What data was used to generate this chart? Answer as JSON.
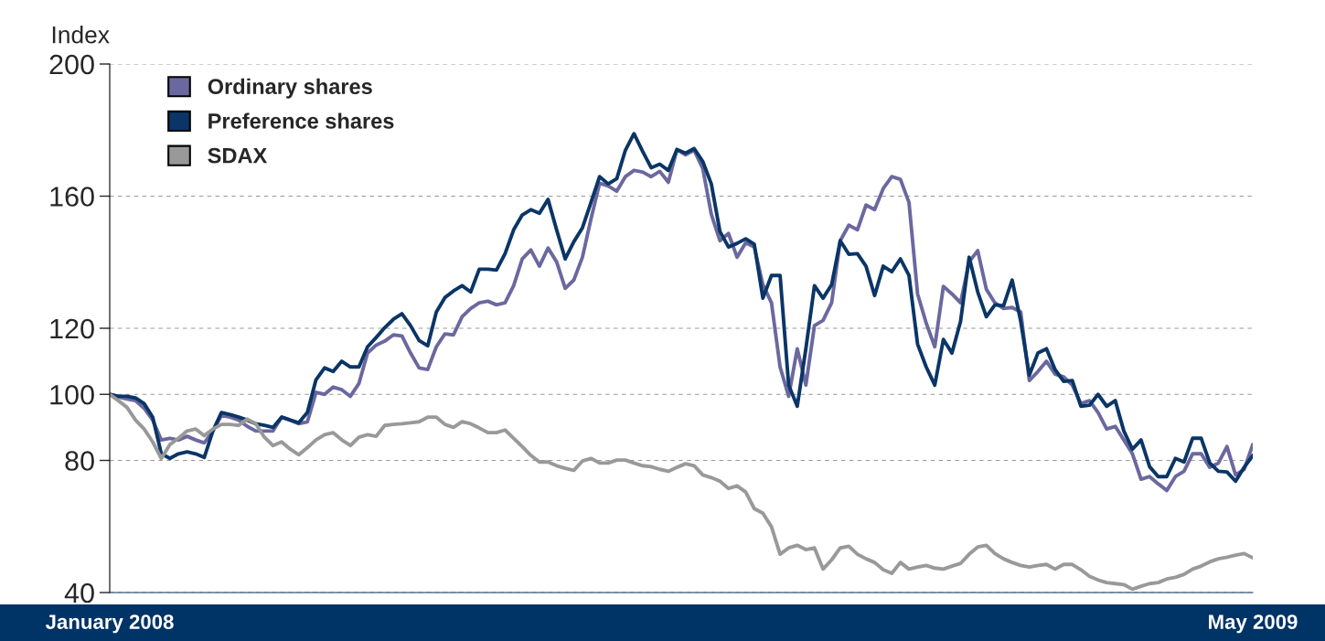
{
  "chart_data": {
    "type": "line",
    "ylabel": "Index",
    "categories": [
      "January 2008",
      null,
      null,
      null,
      null,
      null,
      null,
      null,
      null,
      null,
      null,
      null,
      null,
      null,
      null,
      null,
      null,
      null,
      null,
      null,
      null,
      null,
      null,
      null,
      null,
      null,
      null,
      null,
      null,
      null,
      null,
      null,
      null,
      null,
      null,
      null,
      null,
      null,
      null,
      null,
      null,
      null,
      null,
      null,
      null,
      null,
      null,
      null,
      null,
      null,
      null,
      null,
      null,
      null,
      null,
      null,
      null,
      null,
      null,
      null,
      null,
      null,
      null,
      null,
      null,
      null,
      null,
      null,
      null,
      null,
      null,
      null,
      null,
      null,
      null,
      null,
      null,
      null,
      null,
      null,
      null,
      null,
      null,
      null,
      null,
      null,
      null,
      null,
      null,
      null,
      null,
      null,
      null,
      null,
      null,
      null,
      null,
      null,
      null,
      null,
      null,
      null,
      null,
      null,
      null,
      null,
      null,
      null,
      null,
      null,
      null,
      null,
      null,
      null,
      null,
      null,
      null,
      null,
      null,
      null,
      null,
      null,
      null,
      null,
      null,
      null,
      null,
      null,
      null,
      null,
      null,
      null,
      null,
      "May 2009"
    ],
    "series": [
      {
        "name": "Ordinary shares",
        "color": "#6b689f",
        "values": [
          100,
          99.2,
          98.6,
          98.1,
          95.8,
          92.2,
          86.2,
          86.7,
          86.2,
          87.3,
          86.2,
          85.3,
          88.9,
          93.6,
          93.1,
          92.2,
          90.3,
          88.9,
          88.9,
          88.9,
          93.1,
          92.2,
          91.1,
          91.7,
          100.6,
          100,
          102.2,
          101.4,
          99.4,
          103.3,
          112.5,
          114.9,
          116.1,
          118.0,
          117.7,
          112.5,
          108.0,
          107.5,
          114.4,
          118.3,
          118.0,
          123.5,
          126.0,
          127.7,
          128.2,
          127.1,
          127.7,
          132.9,
          141.0,
          143.7,
          138.8,
          144.3,
          140.1,
          132.1,
          134.6,
          141.5,
          153.1,
          163.9,
          163.1,
          161.5,
          165.9,
          167.8,
          167.3,
          165.9,
          167.5,
          164.2,
          174.1,
          172.5,
          173.9,
          168.4,
          154.5,
          146.5,
          148.7,
          141.5,
          145.9,
          144.6,
          133.2,
          127.7,
          108.3,
          99.4,
          113.8,
          102.8,
          120.8,
          122.4,
          127.7,
          146.5,
          151.2,
          149.8,
          157.3,
          155.9,
          162.3,
          165.9,
          165.1,
          158.1,
          130.4,
          121.6,
          114.4,
          132.7,
          130.4,
          127.7,
          140.1,
          143.5,
          131.8,
          127.7,
          126.0,
          126.3,
          124.9,
          104.2,
          106.9,
          110.0,
          106.1,
          105.3,
          102.8,
          97.2,
          98.1,
          94.5,
          89.5,
          90.3,
          86.2,
          82.0,
          74.3,
          75.1,
          72.9,
          70.9,
          75.1,
          76.7,
          82.0,
          82.0,
          77.9,
          79.2,
          84.2,
          75.6,
          77.3,
          84.8
        ]
      },
      {
        "name": "Preference shares",
        "color": "#0a3566",
        "values": [
          100,
          99.4,
          99.4,
          98.9,
          97.2,
          93.1,
          82.0,
          80.6,
          82.0,
          82.6,
          82.0,
          80.9,
          88.9,
          94.5,
          93.9,
          93.1,
          92.2,
          91.1,
          90.6,
          90.0,
          93.1,
          92.2,
          91.4,
          94.5,
          104.4,
          108.0,
          106.9,
          110.0,
          108.3,
          108.3,
          114.4,
          117.2,
          120.2,
          122.7,
          124.4,
          120.8,
          116.3,
          114.7,
          124.9,
          129.3,
          131.3,
          132.9,
          131.0,
          137.9,
          137.9,
          137.6,
          142.6,
          149.8,
          154.3,
          155.9,
          154.8,
          159.0,
          149.8,
          141.0,
          146.2,
          150.4,
          158.1,
          165.9,
          163.7,
          165.3,
          173.9,
          178.9,
          173.6,
          168.6,
          169.7,
          167.8,
          174.1,
          173.0,
          174.4,
          170.5,
          163.7,
          149.3,
          144.6,
          145.7,
          147.1,
          145.4,
          129.1,
          136.0,
          136.0,
          102.8,
          96.4,
          113.8,
          132.9,
          129.1,
          133.2,
          146.5,
          142.4,
          142.6,
          138.8,
          129.9,
          138.8,
          137.1,
          141.0,
          136.0,
          115.2,
          108.3,
          102.8,
          116.6,
          112.5,
          122.1,
          141.5,
          131.0,
          123.5,
          127.1,
          126.8,
          134.6,
          122.1,
          105.8,
          112.5,
          113.8,
          107.5,
          103.9,
          104.2,
          96.4,
          96.7,
          100,
          96.4,
          98.1,
          88.9,
          83.4,
          86.2,
          78.1,
          75.1,
          75.1,
          80.6,
          79.5,
          86.7,
          86.7,
          79.2,
          76.7,
          76.5,
          73.7,
          77.9,
          81.5
        ]
      },
      {
        "name": "SDAX",
        "color": "#999999",
        "values": [
          100,
          98.1,
          96.1,
          92.2,
          89.5,
          85.6,
          80.6,
          84.8,
          86.7,
          88.9,
          89.5,
          87.5,
          89.5,
          90.9,
          90.9,
          90.6,
          92.5,
          91.1,
          87.0,
          84.5,
          85.6,
          83.4,
          81.7,
          83.9,
          86.2,
          87.8,
          88.4,
          86.2,
          84.5,
          87.0,
          87.8,
          87.3,
          90.6,
          90.9,
          91.1,
          91.4,
          91.7,
          93.1,
          93.1,
          90.9,
          90.0,
          91.7,
          91.1,
          89.8,
          88.4,
          88.4,
          89.2,
          86.7,
          84.2,
          81.5,
          79.5,
          79.5,
          78.4,
          77.6,
          77.0,
          79.8,
          80.6,
          79.2,
          79.2,
          80.1,
          80.1,
          79.2,
          78.4,
          78.1,
          77.3,
          76.7,
          77.9,
          79.0,
          78.4,
          75.6,
          74.8,
          73.7,
          71.5,
          72.3,
          70.4,
          65.4,
          64.0,
          59.9,
          51.6,
          53.5,
          54.3,
          53.0,
          53.5,
          47.1,
          49.9,
          53.5,
          54.0,
          51.6,
          50.2,
          49.1,
          46.9,
          45.8,
          49.1,
          47.1,
          47.7,
          48.2,
          47.4,
          47.1,
          48.0,
          48.8,
          51.6,
          53.8,
          54.3,
          51.8,
          50.2,
          49.1,
          48.2,
          47.7,
          48.2,
          48.5,
          47.1,
          48.5,
          48.5,
          46.9,
          44.9,
          43.8,
          43.0,
          42.7,
          42.4,
          41.0,
          41.9,
          42.7,
          43.0,
          44.1,
          44.6,
          45.5,
          47.1,
          48.0,
          49.3,
          50.2,
          50.7,
          51.3,
          51.8,
          50.5
        ]
      }
    ],
    "ylim": [
      40,
      200
    ],
    "yticks": [
      40,
      80,
      100,
      120,
      160,
      200
    ],
    "grid": "y",
    "legend": "top left"
  }
}
